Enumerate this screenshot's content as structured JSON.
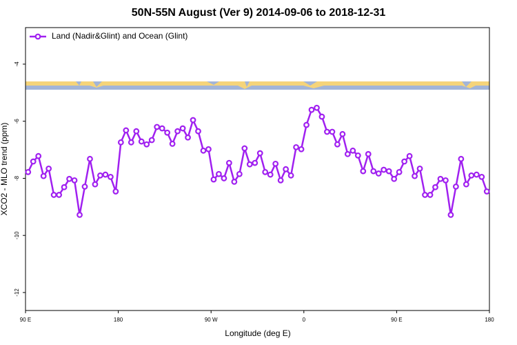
{
  "chart_data": {
    "type": "line",
    "title": "50N-55N August (Ver 9)   2014-09-06 to 2018-12-31",
    "x_label": "Longitude (deg E)",
    "y_label": "XCO2 - MLO trend (ppm)",
    "x": [
      92.5,
      97.5,
      102.5,
      107.5,
      112.5,
      117.5,
      122.5,
      127.5,
      132.5,
      137.5,
      142.5,
      147.5,
      152.5,
      157.5,
      162.5,
      167.5,
      172.5,
      177.5,
      182.5,
      187.5,
      192.5,
      197.5,
      202.5,
      207.5,
      212.5,
      217.5,
      222.5,
      227.5,
      232.5,
      237.5,
      242.5,
      247.5,
      252.5,
      257.5,
      262.5,
      267.5,
      272.5,
      277.5,
      282.5,
      287.5,
      292.5,
      297.5,
      302.5,
      307.5,
      312.5,
      317.5,
      322.5,
      327.5,
      332.5,
      337.5,
      342.5,
      347.5,
      352.5,
      357.5,
      362.5,
      367.5,
      372.5,
      377.5,
      382.5,
      387.5,
      392.5,
      397.5,
      402.5,
      407.5,
      412.5,
      417.5,
      422.5,
      427.5,
      432.5,
      437.5,
      442.5,
      447.5,
      452.5,
      457.5,
      462.5,
      467.5,
      472.5,
      477.5,
      482.5,
      487.5,
      492.5,
      497.5,
      502.5,
      507.5,
      512.5,
      517.5,
      522.5,
      527.5,
      532.5,
      537.5
    ],
    "series": [
      {
        "name": "Land (Nadir&Glint) and Ocean (Glint)",
        "color": "#a020f0",
        "values": [
          -7.78,
          -7.41,
          -7.22,
          -7.92,
          -7.66,
          -8.58,
          -8.58,
          -8.31,
          -8.02,
          -8.07,
          -9.28,
          -8.29,
          -7.32,
          -8.21,
          -7.9,
          -7.87,
          -7.95,
          -8.46,
          -6.74,
          -6.32,
          -6.74,
          -6.35,
          -6.71,
          -6.81,
          -6.66,
          -6.2,
          -6.25,
          -6.4,
          -6.79,
          -6.35,
          -6.25,
          -6.57,
          -5.96,
          -6.35,
          -7.03,
          -6.98,
          -8.04,
          -7.85,
          -8.0,
          -7.46,
          -8.12,
          -7.85,
          -6.95,
          -7.51,
          -7.46,
          -7.12,
          -7.78,
          -7.87,
          -7.49,
          -8.07,
          -7.68,
          -7.9,
          -6.91,
          -6.98,
          -6.13,
          -5.6,
          -5.53,
          -5.84,
          -6.37,
          -6.37,
          -6.81,
          -6.45,
          -7.15,
          -7.03,
          -7.2,
          -7.75,
          -7.15,
          -7.75,
          -7.83,
          -7.7,
          -7.75,
          -8.02,
          -7.78,
          -7.41,
          -7.22,
          -7.92,
          -7.66,
          -8.58,
          -8.58,
          -8.31,
          -8.02,
          -8.07,
          -9.28,
          -8.29,
          -7.32,
          -8.21,
          -7.9,
          -7.87,
          -7.95,
          -8.46
        ]
      }
    ],
    "xlim": [
      90,
      540
    ],
    "xticks": [
      {
        "value": 90,
        "label": "90 E"
      },
      {
        "value": 180,
        "label": "180"
      },
      {
        "value": 270,
        "label": "90 W"
      },
      {
        "value": 360,
        "label": "0"
      },
      {
        "value": 450,
        "label": "90 E"
      },
      {
        "value": 540,
        "label": "180"
      }
    ],
    "ylim": [
      -12.63,
      -2.72
    ],
    "yticks": [
      -4,
      -6,
      -8,
      -10,
      -12
    ],
    "legend": "top-left",
    "grid": false
  }
}
